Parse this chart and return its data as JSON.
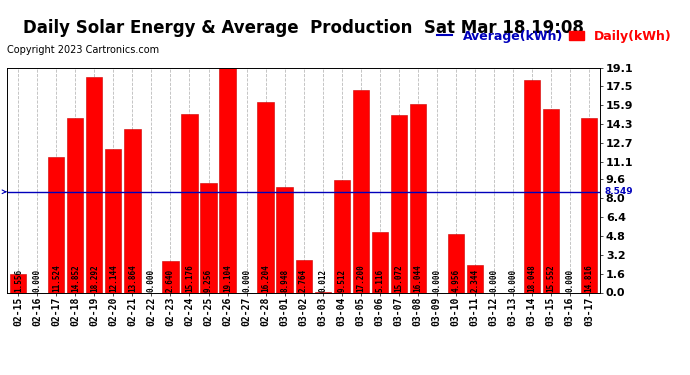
{
  "title": "Daily Solar Energy & Average  Production  Sat Mar 18 19:08",
  "copyright": "Copyright 2023 Cartronics.com",
  "average_label": "Average(kWh)",
  "daily_label": "Daily(kWh)",
  "average_value": 8.549,
  "categories": [
    "02-15",
    "02-16",
    "02-17",
    "02-18",
    "02-19",
    "02-20",
    "02-21",
    "02-22",
    "02-23",
    "02-24",
    "02-25",
    "02-26",
    "02-27",
    "02-28",
    "03-01",
    "03-02",
    "03-03",
    "03-04",
    "03-05",
    "03-06",
    "03-07",
    "03-08",
    "03-09",
    "03-10",
    "03-11",
    "03-12",
    "03-13",
    "03-14",
    "03-15",
    "03-16",
    "03-17"
  ],
  "values": [
    1.556,
    0.0,
    11.524,
    14.852,
    18.292,
    12.144,
    13.864,
    0.0,
    2.64,
    15.176,
    9.256,
    19.104,
    0.0,
    16.204,
    8.948,
    2.764,
    0.012,
    9.512,
    17.2,
    5.116,
    15.072,
    16.044,
    0.0,
    4.956,
    2.344,
    0.0,
    0.0,
    18.048,
    15.552,
    0.0,
    14.816
  ],
  "bar_color": "#ff0000",
  "bar_edge_color": "#cc0000",
  "average_line_color": "#0000bb",
  "background_color": "#ffffff",
  "grid_color": "#bbbbbb",
  "ylim": [
    0,
    19.1
  ],
  "yticks": [
    0.0,
    1.6,
    3.2,
    4.8,
    6.4,
    8.0,
    9.6,
    11.1,
    12.7,
    14.3,
    15.9,
    17.5,
    19.1
  ],
  "avg_annotation": "8.549",
  "title_fontsize": 12,
  "tick_fontsize": 7,
  "value_fontsize": 5.5,
  "copyright_fontsize": 7,
  "legend_fontsize": 9
}
